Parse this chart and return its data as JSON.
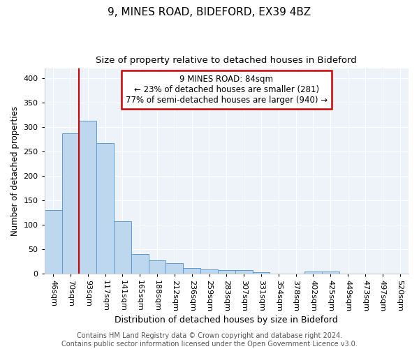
{
  "title1": "9, MINES ROAD, BIDEFORD, EX39 4BZ",
  "title2": "Size of property relative to detached houses in Bideford",
  "xlabel": "Distribution of detached houses by size in Bideford",
  "ylabel": "Number of detached properties",
  "categories": [
    "46sqm",
    "70sqm",
    "93sqm",
    "117sqm",
    "141sqm",
    "165sqm",
    "188sqm",
    "212sqm",
    "236sqm",
    "259sqm",
    "283sqm",
    "307sqm",
    "331sqm",
    "354sqm",
    "378sqm",
    "402sqm",
    "425sqm",
    "449sqm",
    "473sqm",
    "497sqm",
    "520sqm"
  ],
  "values": [
    130,
    287,
    313,
    267,
    107,
    41,
    27,
    22,
    12,
    9,
    8,
    7,
    3,
    0,
    0,
    5,
    5,
    0,
    0,
    0,
    0
  ],
  "bar_color": "#bdd7ee",
  "bar_edge_color": "#5b9bd5",
  "vline_x": 1.5,
  "vline_color": "#cc0000",
  "annotation_line1": "9 MINES ROAD: 84sqm",
  "annotation_line2": "← 23% of detached houses are smaller (281)",
  "annotation_line3": "77% of semi-detached houses are larger (940) →",
  "annotation_box_color": "#ffffff",
  "annotation_box_edge": "#cc0000",
  "ylim": [
    0,
    420
  ],
  "yticks": [
    0,
    50,
    100,
    150,
    200,
    250,
    300,
    350,
    400
  ],
  "background_color": "#eef2f9",
  "footer_text": "Contains HM Land Registry data © Crown copyright and database right 2024.\nContains public sector information licensed under the Open Government Licence v3.0.",
  "title1_fontsize": 11,
  "title2_fontsize": 9.5,
  "xlabel_fontsize": 9,
  "ylabel_fontsize": 8.5,
  "tick_fontsize": 8,
  "annotation_fontsize": 8.5,
  "footer_fontsize": 7
}
